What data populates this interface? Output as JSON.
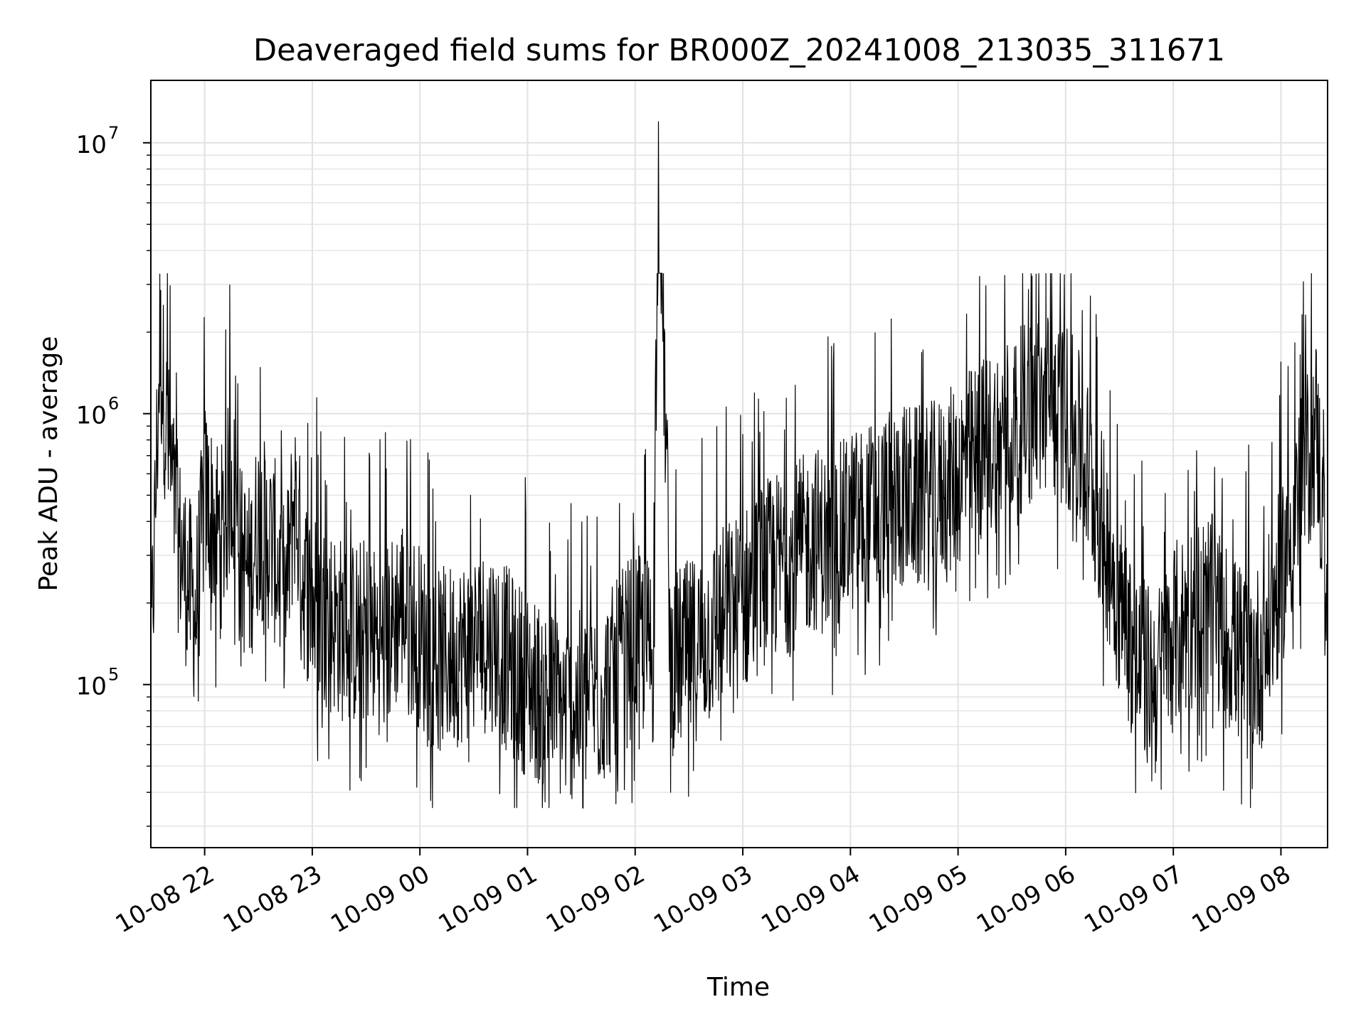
{
  "chart_data": {
    "type": "line",
    "title": "Deaveraged field sums for BR000Z_20241008_213035_311671",
    "xlabel": "Time",
    "ylabel": "Peak ADU - average",
    "yscale": "log",
    "ylim": [
      25000,
      17000000
    ],
    "xlim": [
      "10-08 21:30",
      "10-09 08:26"
    ],
    "grid": true,
    "line_color": "#000000",
    "x_ticks": [
      {
        "label": "10-08 22",
        "time": "10-08 22:00"
      },
      {
        "label": "10-08 23",
        "time": "10-08 23:00"
      },
      {
        "label": "10-09 00",
        "time": "10-09 00:00"
      },
      {
        "label": "10-09 01",
        "time": "10-09 01:00"
      },
      {
        "label": "10-09 02",
        "time": "10-09 02:00"
      },
      {
        "label": "10-09 03",
        "time": "10-09 03:00"
      },
      {
        "label": "10-09 04",
        "time": "10-09 04:00"
      },
      {
        "label": "10-09 05",
        "time": "10-09 05:00"
      },
      {
        "label": "10-09 06",
        "time": "10-09 06:00"
      },
      {
        "label": "10-09 07",
        "time": "10-09 07:00"
      },
      {
        "label": "10-09 08",
        "time": "10-09 08:00"
      }
    ],
    "y_ticks": [
      {
        "base": "10",
        "exp": "5",
        "value": 100000
      },
      {
        "base": "10",
        "exp": "6",
        "value": 1000000
      },
      {
        "base": "10",
        "exp": "7",
        "value": 10000000
      }
    ],
    "series": [
      {
        "x": [
          "10-08 21:30",
          "10-08 21:35",
          "10-08 21:40",
          "10-08 21:45",
          "10-08 21:50",
          "10-08 21:55",
          "10-08 22:00",
          "10-08 22:05",
          "10-08 22:10",
          "10-08 22:15",
          "10-08 22:20",
          "10-08 22:25",
          "10-08 22:30",
          "10-08 22:35",
          "10-08 22:40",
          "10-08 22:45",
          "10-08 22:50",
          "10-08 22:55",
          "10-08 23:00",
          "10-08 23:10",
          "10-08 23:20",
          "10-08 23:30",
          "10-08 23:40",
          "10-08 23:50",
          "10-09 00:00",
          "10-09 00:10",
          "10-09 00:20",
          "10-09 00:30",
          "10-09 00:40",
          "10-09 00:50",
          "10-09 01:00",
          "10-09 01:10",
          "10-09 01:20",
          "10-09 01:30",
          "10-09 01:40",
          "10-09 01:50",
          "10-09 02:00",
          "10-09 02:10",
          "10-09 02:13",
          "10-09 02:20",
          "10-09 02:30",
          "10-09 02:40",
          "10-09 02:50",
          "10-09 03:00",
          "10-09 03:10",
          "10-09 03:20",
          "10-09 03:30",
          "10-09 03:40",
          "10-09 03:50",
          "10-09 04:00",
          "10-09 04:10",
          "10-09 04:20",
          "10-09 04:30",
          "10-09 04:40",
          "10-09 04:50",
          "10-09 05:00",
          "10-09 05:10",
          "10-09 05:20",
          "10-09 05:30",
          "10-09 05:40",
          "10-09 05:50",
          "10-09 06:00",
          "10-09 06:10",
          "10-09 06:20",
          "10-09 06:30",
          "10-09 06:40",
          "10-09 06:50",
          "10-09 07:00",
          "10-09 07:10",
          "10-09 07:20",
          "10-09 07:30",
          "10-09 07:40",
          "10-09 07:50",
          "10-09 08:00",
          "10-09 08:10",
          "10-09 08:20",
          "10-09 08:26"
        ],
        "y": [
          110000,
          1800000,
          700000,
          350000,
          250000,
          180000,
          500000,
          400000,
          350000,
          600000,
          300000,
          250000,
          400000,
          350000,
          300000,
          200000,
          500000,
          250000,
          200000,
          180000,
          150000,
          160000,
          140000,
          200000,
          150000,
          120000,
          130000,
          140000,
          150000,
          120000,
          100000,
          90000,
          80000,
          85000,
          90000,
          110000,
          150000,
          130000,
          12000000,
          120000,
          130000,
          150000,
          180000,
          200000,
          250000,
          280000,
          300000,
          350000,
          320000,
          400000,
          420000,
          450000,
          500000,
          480000,
          520000,
          600000,
          700000,
          800000,
          900000,
          1000000,
          1100000,
          1000000,
          700000,
          400000,
          200000,
          120000,
          100000,
          150000,
          180000,
          200000,
          150000,
          120000,
          130000,
          250000,
          500000,
          900000,
          180000
        ]
      }
    ]
  }
}
